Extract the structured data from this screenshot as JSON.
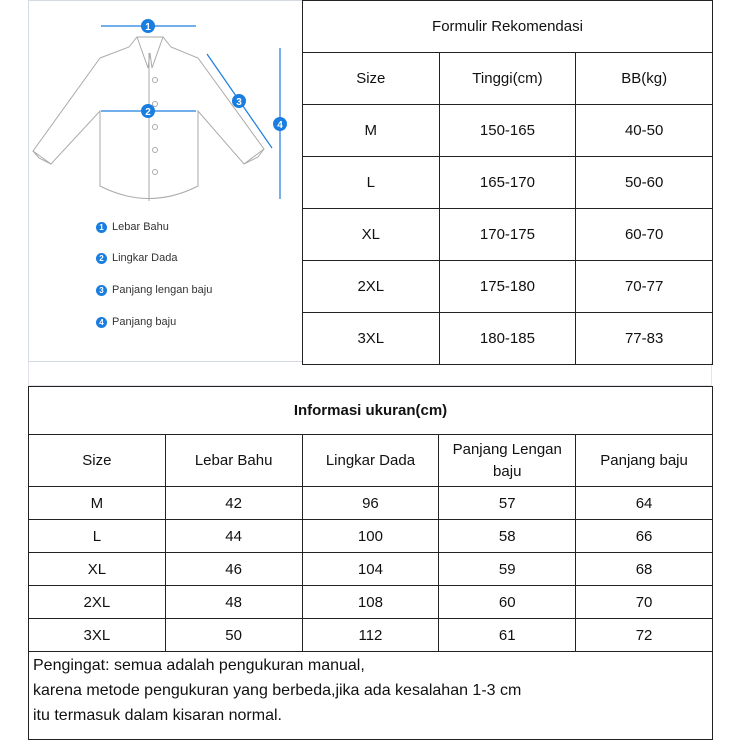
{
  "diagram": {
    "markers": [
      "1",
      "2",
      "3",
      "4"
    ],
    "accent": "#1a7de0",
    "legend": [
      {
        "num": "1",
        "label": "Lebar Bahu"
      },
      {
        "num": "2",
        "label": "Lingkar Dada"
      },
      {
        "num": "3",
        "label": "Panjang lengan baju"
      },
      {
        "num": "4",
        "label": "Panjang baju"
      }
    ]
  },
  "recommendation": {
    "title": "Formulir Rekomendasi",
    "headers": [
      "Size",
      "Tinggi(cm)",
      "BB(kg)"
    ],
    "rows": [
      [
        "M",
        "150-165",
        "40-50"
      ],
      [
        "L",
        "165-170",
        "50-60"
      ],
      [
        "XL",
        "170-175",
        "60-70"
      ],
      [
        "2XL",
        "175-180",
        "70-77"
      ],
      [
        "3XL",
        "180-185",
        "77-83"
      ]
    ]
  },
  "size_info": {
    "title": "Informasi ukuran(cm)",
    "headers": [
      "Size",
      "Lebar Bahu",
      "Lingkar Dada",
      "Panjang Lengan baju",
      "Panjang baju"
    ],
    "rows": [
      [
        "M",
        "42",
        "96",
        "57",
        "64"
      ],
      [
        "L",
        "44",
        "100",
        "58",
        "66"
      ],
      [
        "XL",
        "46",
        "104",
        "59",
        "68"
      ],
      [
        "2XL",
        "48",
        "108",
        "60",
        "70"
      ],
      [
        "3XL",
        "50",
        "112",
        "61",
        "72"
      ]
    ]
  },
  "note": [
    "Pengingat: semua adalah pengukuran manual,",
    "karena metode pengukuran yang berbeda,jika ada kesalahan 1-3 cm",
    "itu termasuk dalam kisaran normal."
  ]
}
